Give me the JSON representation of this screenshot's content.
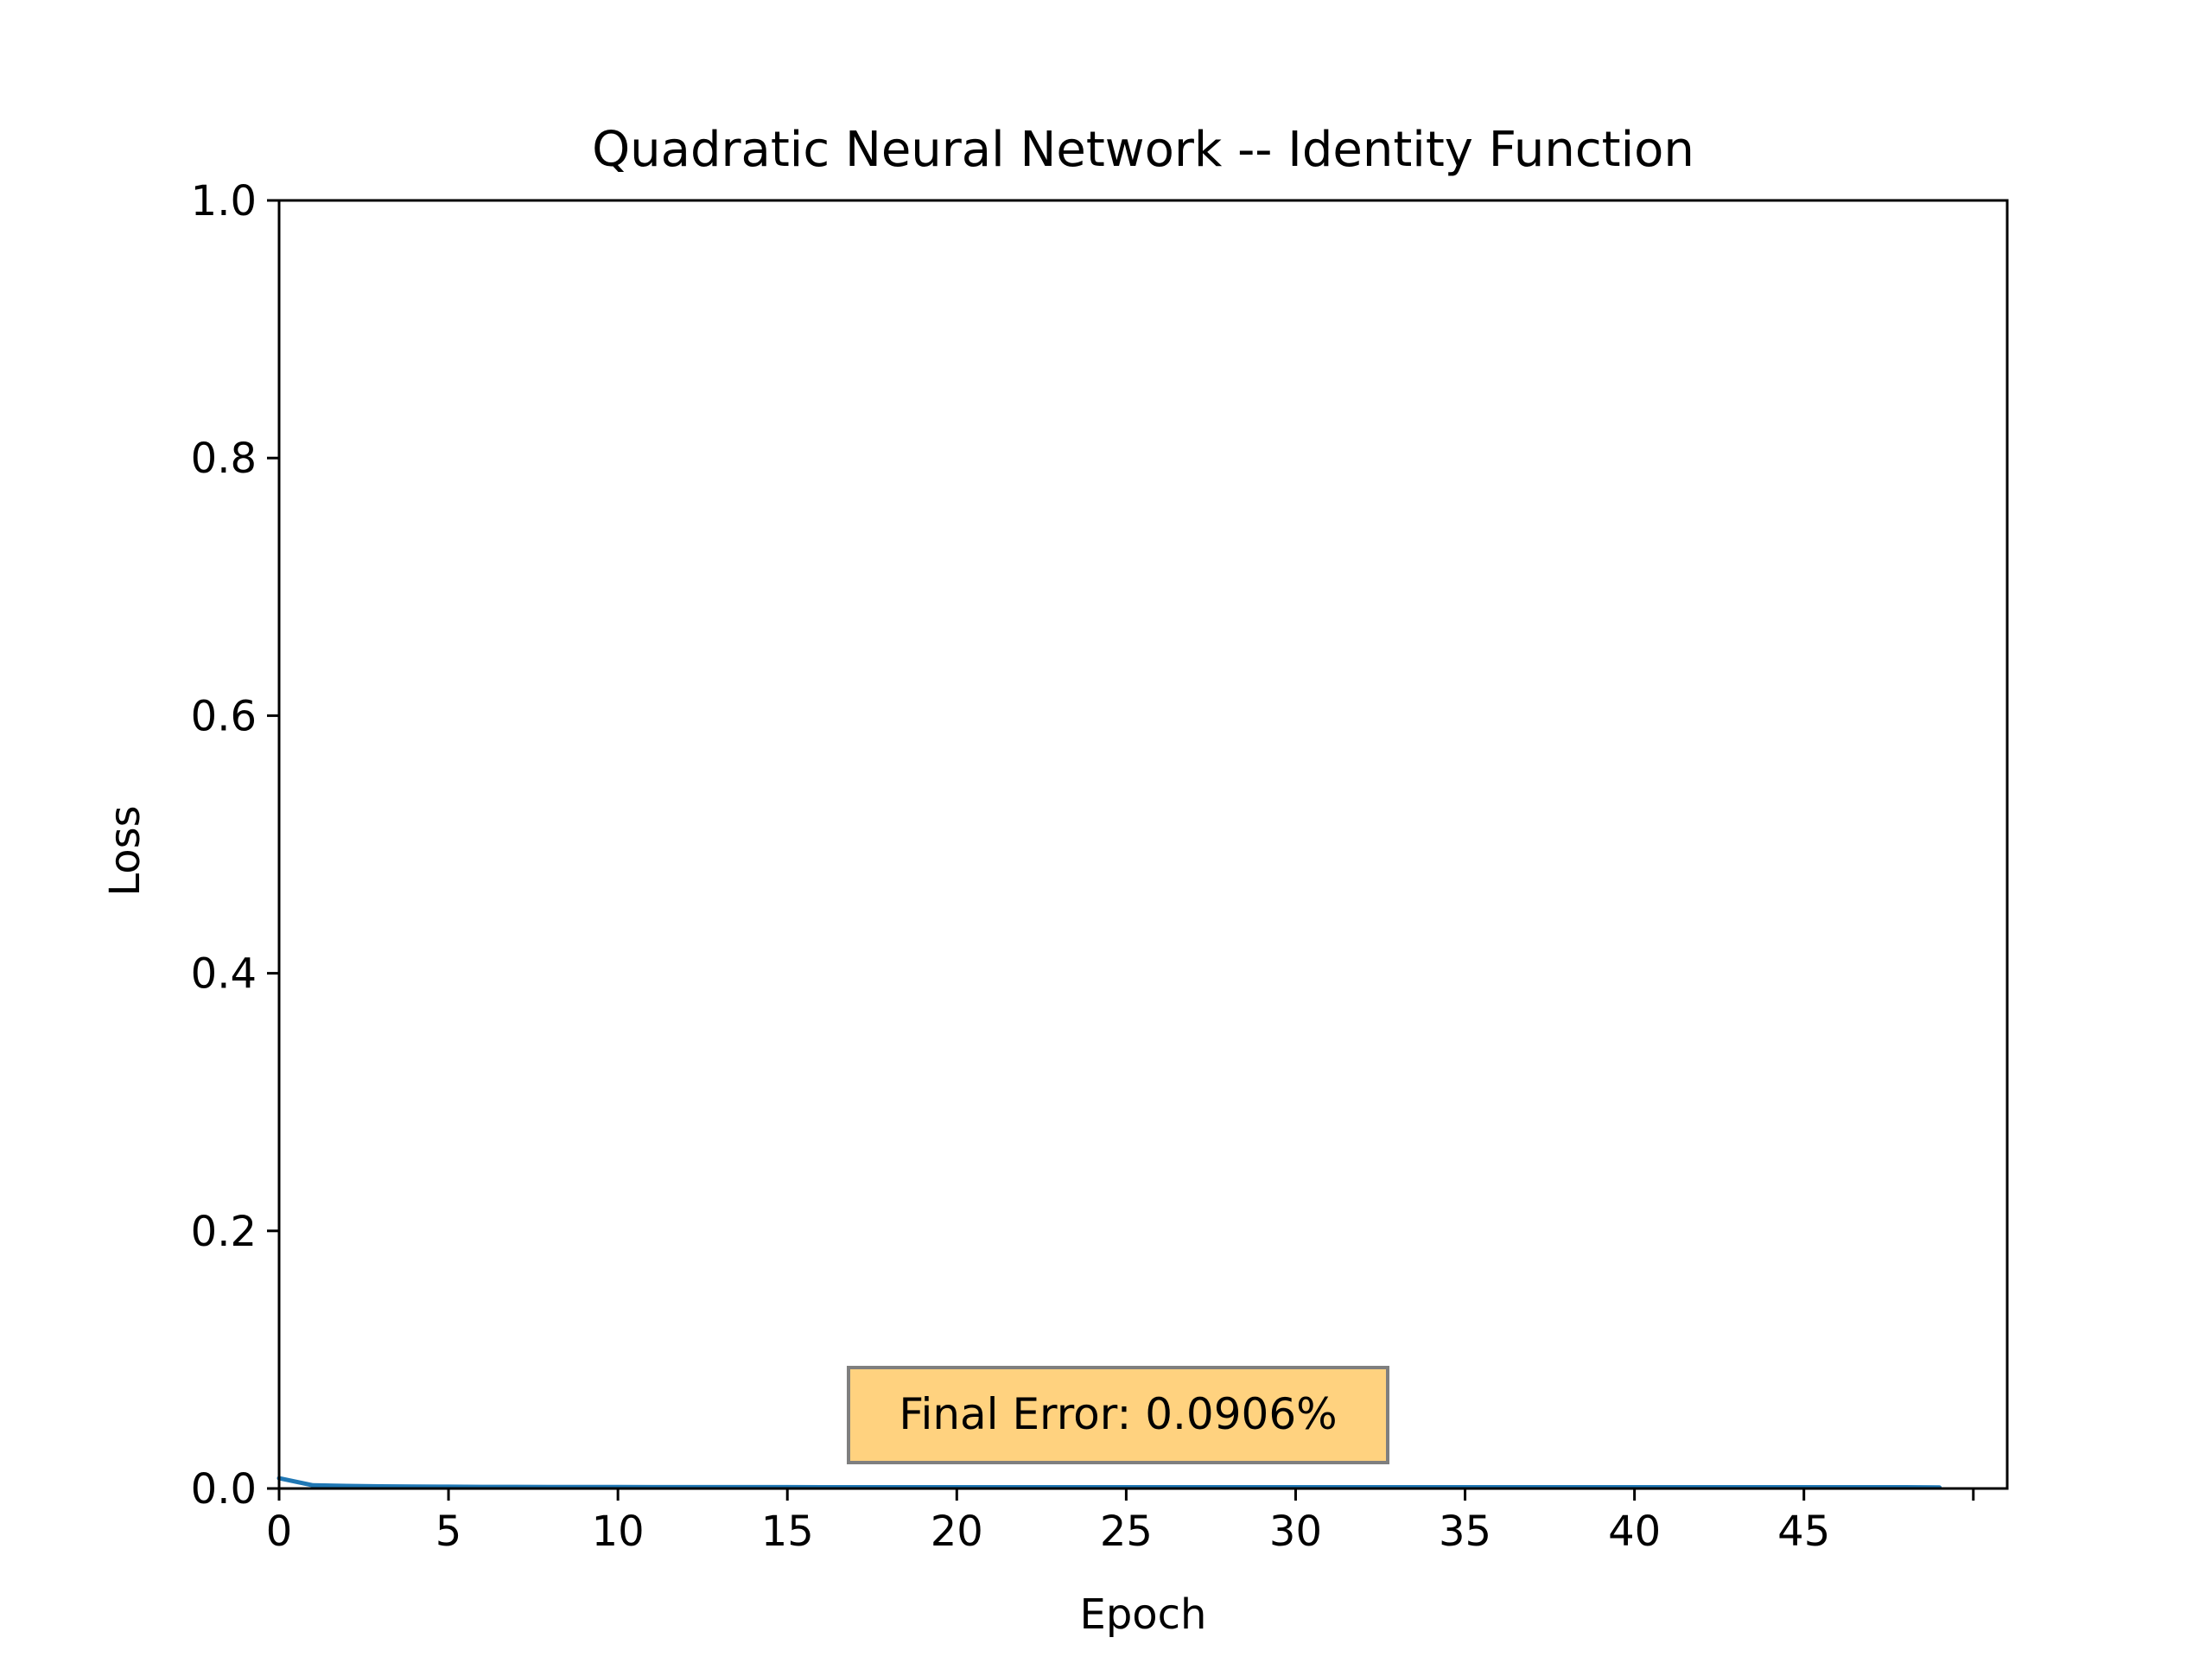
{
  "chart_data": {
    "type": "line",
    "title": "Quadratic Neural Network -- Identity Function",
    "xlabel": "Epoch",
    "ylabel": "Loss",
    "xlim": [
      0,
      51
    ],
    "ylim": [
      0.0,
      1.0
    ],
    "xticks": [
      0,
      5,
      10,
      15,
      20,
      25,
      30,
      35,
      40,
      45,
      50
    ],
    "xtick_labels": [
      "0",
      "5",
      "10",
      "15",
      "20",
      "25",
      "30",
      "35",
      "40",
      "45",
      ""
    ],
    "yticks": [
      0.0,
      0.2,
      0.4,
      0.6,
      0.8,
      1.0
    ],
    "ytick_labels": [
      "0.0",
      "0.2",
      "0.4",
      "0.6",
      "0.8",
      "1.0"
    ],
    "grid": false,
    "series": [
      {
        "color": "#1f77b4",
        "x": [
          0,
          1,
          2,
          3,
          4,
          5,
          6,
          7,
          8,
          9,
          10,
          11,
          12,
          13,
          14,
          15,
          16,
          17,
          18,
          19,
          20,
          21,
          22,
          23,
          24,
          25,
          26,
          27,
          28,
          29,
          30,
          31,
          32,
          33,
          34,
          35,
          36,
          37,
          38,
          39,
          40,
          41,
          42,
          43,
          44,
          45,
          46,
          47,
          48,
          49
        ],
        "y": [
          0.008,
          0.0025,
          0.002,
          0.0017,
          0.0015,
          0.0014,
          0.0013,
          0.0013,
          0.0012,
          0.0012,
          0.0012,
          0.0011,
          0.0011,
          0.0011,
          0.0011,
          0.0011,
          0.001,
          0.001,
          0.001,
          0.001,
          0.001,
          0.001,
          0.001,
          0.001,
          0.001,
          0.001,
          0.001,
          0.001,
          0.001,
          0.001,
          0.001,
          0.001,
          0.001,
          0.001,
          0.001,
          0.001,
          0.001,
          0.001,
          0.001,
          0.001,
          0.001,
          0.001,
          0.001,
          0.001,
          0.001,
          0.001,
          0.001,
          0.001,
          0.001,
          0.0009
        ]
      }
    ],
    "annotation": {
      "text": "Final Error: 0.0906%",
      "facecolor": "#ffd27f",
      "edgecolor": "#7f7f7f"
    }
  }
}
